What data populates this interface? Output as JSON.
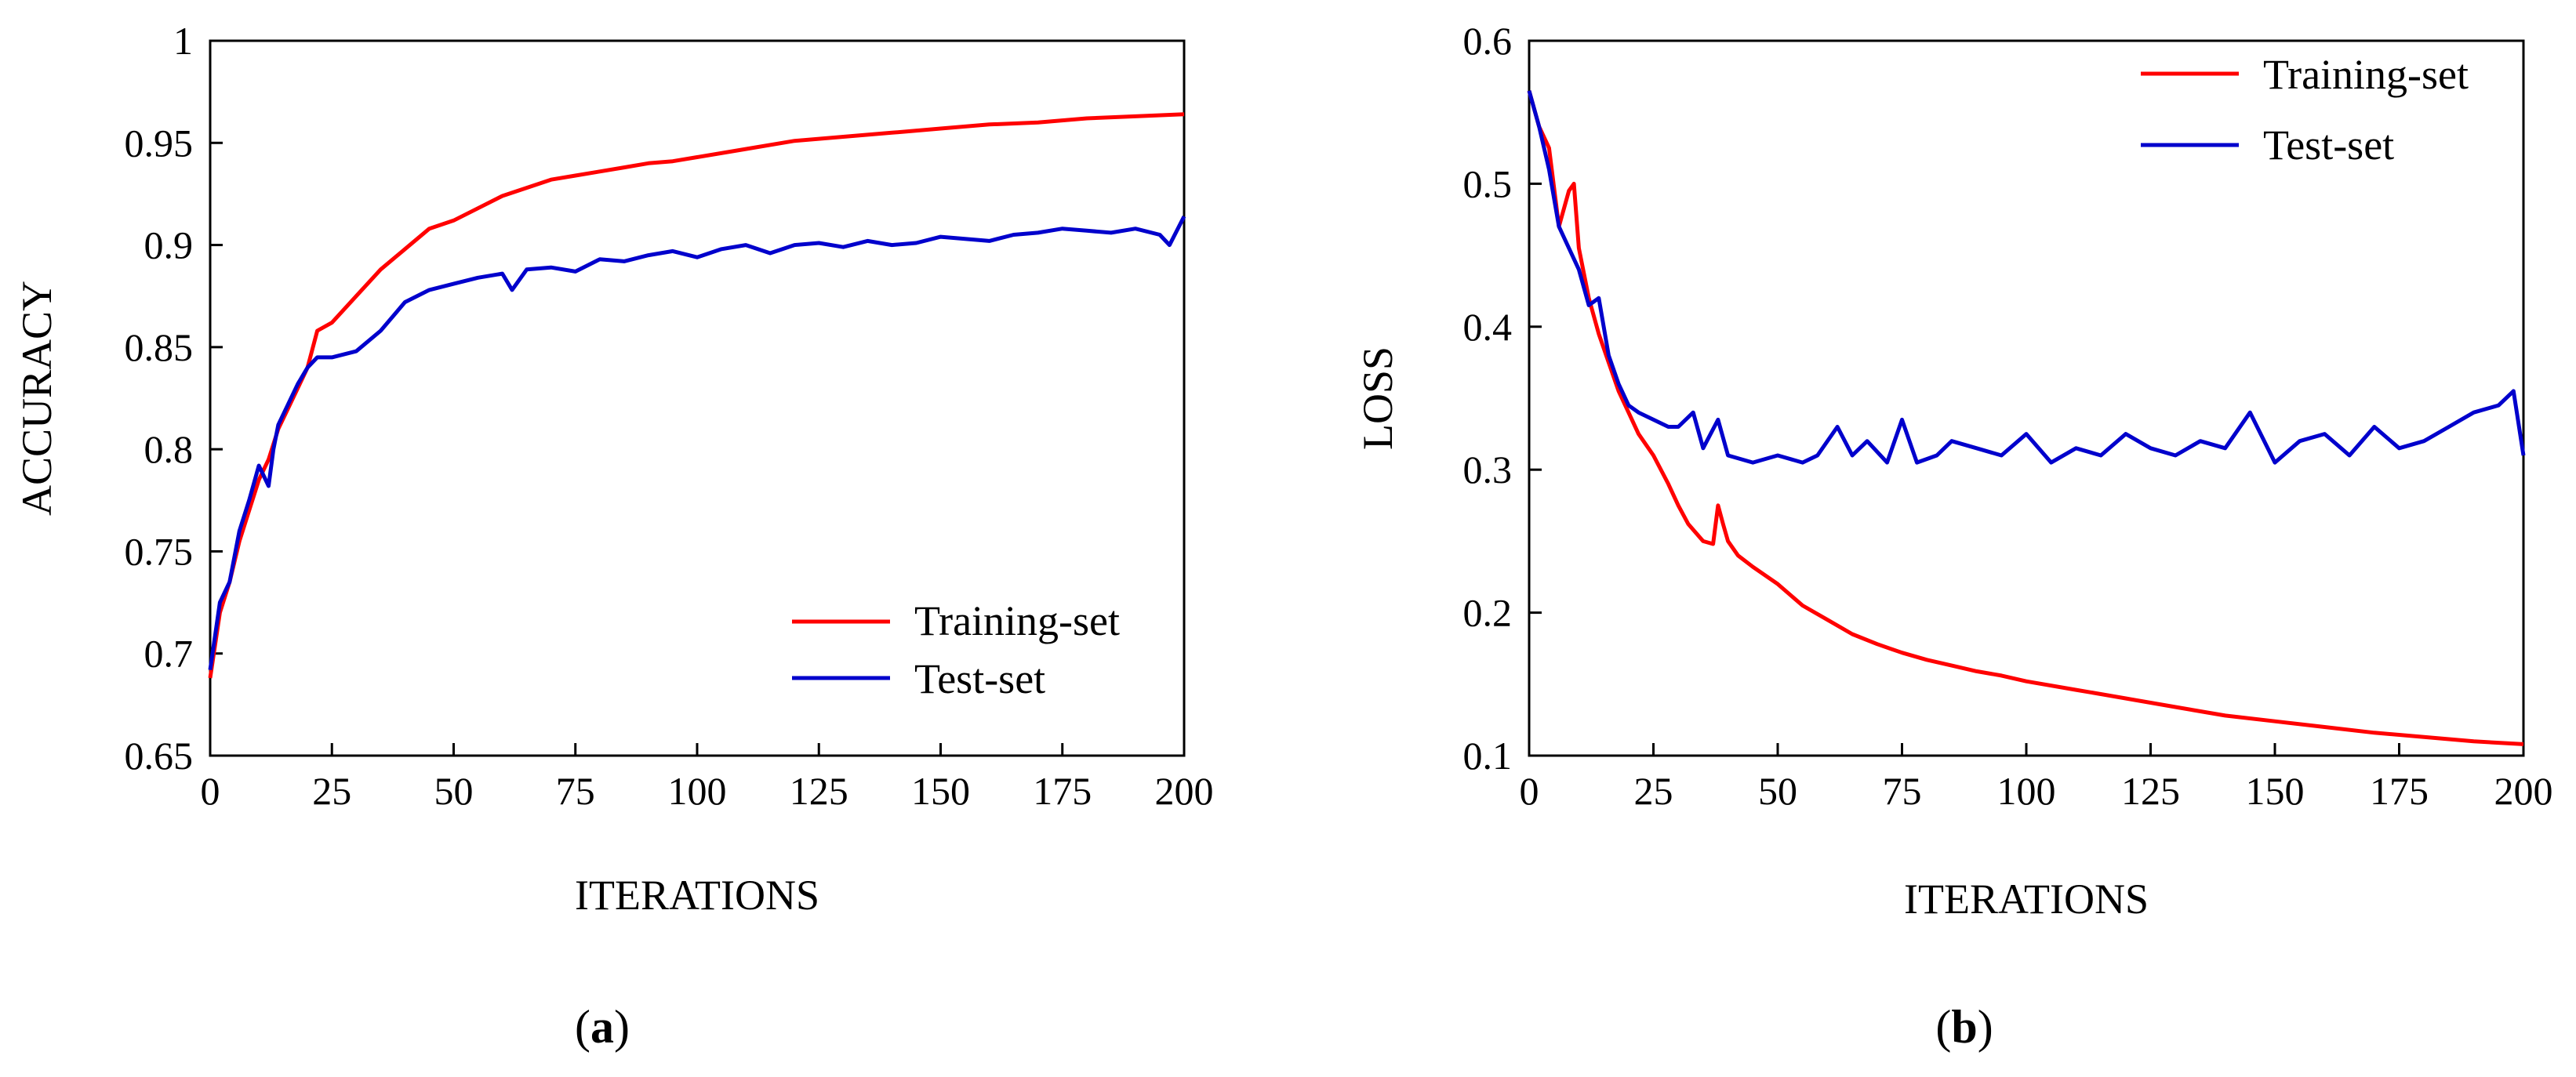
{
  "chart_data": [
    {
      "type": "line",
      "panel_label": "a",
      "title": "",
      "xlabel": "ITERATIONS",
      "ylabel": "ACCURACY",
      "xlim": [
        0,
        200
      ],
      "ylim": [
        0.65,
        1
      ],
      "xticks": [
        "0",
        "25",
        "50",
        "75",
        "100",
        "125",
        "150",
        "175",
        "200"
      ],
      "yticks": [
        "0.65",
        "0.7",
        "0.75",
        "0.8",
        "0.85",
        "0.9",
        "0.95",
        "1"
      ],
      "legend_position": "bottom-right",
      "series": [
        {
          "name": "Training-set",
          "color": "#ff0000",
          "x": [
            0,
            2,
            4,
            6,
            8,
            10,
            12,
            14,
            16,
            18,
            20,
            22,
            25,
            30,
            35,
            40,
            45,
            50,
            55,
            60,
            65,
            70,
            75,
            80,
            85,
            90,
            95,
            100,
            110,
            120,
            130,
            140,
            150,
            160,
            170,
            180,
            190,
            200
          ],
          "y": [
            0.688,
            0.72,
            0.735,
            0.755,
            0.77,
            0.785,
            0.795,
            0.81,
            0.82,
            0.83,
            0.84,
            0.858,
            0.862,
            0.875,
            0.888,
            0.898,
            0.908,
            0.912,
            0.918,
            0.924,
            0.928,
            0.932,
            0.934,
            0.936,
            0.938,
            0.94,
            0.941,
            0.943,
            0.947,
            0.951,
            0.953,
            0.955,
            0.957,
            0.959,
            0.96,
            0.962,
            0.963,
            0.964
          ]
        },
        {
          "name": "Test-set",
          "color": "#0000cc",
          "x": [
            0,
            2,
            4,
            6,
            8,
            10,
            12,
            13,
            14,
            16,
            18,
            20,
            22,
            25,
            30,
            35,
            40,
            45,
            50,
            55,
            60,
            62,
            65,
            70,
            75,
            80,
            85,
            90,
            95,
            100,
            105,
            110,
            115,
            120,
            125,
            130,
            135,
            140,
            145,
            150,
            155,
            160,
            165,
            170,
            175,
            180,
            185,
            190,
            195,
            197,
            200
          ],
          "y": [
            0.692,
            0.725,
            0.735,
            0.76,
            0.775,
            0.792,
            0.782,
            0.8,
            0.812,
            0.822,
            0.832,
            0.84,
            0.845,
            0.845,
            0.848,
            0.858,
            0.872,
            0.878,
            0.881,
            0.884,
            0.886,
            0.878,
            0.888,
            0.889,
            0.887,
            0.893,
            0.892,
            0.895,
            0.897,
            0.894,
            0.898,
            0.9,
            0.896,
            0.9,
            0.901,
            0.899,
            0.902,
            0.9,
            0.901,
            0.904,
            0.903,
            0.902,
            0.905,
            0.906,
            0.908,
            0.907,
            0.906,
            0.908,
            0.905,
            0.9,
            0.914
          ]
        }
      ]
    },
    {
      "type": "line",
      "panel_label": "b",
      "title": "",
      "xlabel": "ITERATIONS",
      "ylabel": "LOSS",
      "xlim": [
        0,
        200
      ],
      "ylim": [
        0.1,
        0.6
      ],
      "xticks": [
        "0",
        "25",
        "50",
        "75",
        "100",
        "125",
        "150",
        "175",
        "200"
      ],
      "yticks": [
        "0.1",
        "0.2",
        "0.3",
        "0.4",
        "0.5",
        "0.6"
      ],
      "legend_position": "top-right",
      "series": [
        {
          "name": "Training-set",
          "color": "#ff0000",
          "x": [
            0,
            2,
            4,
            6,
            8,
            9,
            10,
            12,
            14,
            16,
            18,
            20,
            22,
            25,
            28,
            30,
            32,
            35,
            37,
            38,
            39,
            40,
            42,
            45,
            50,
            55,
            60,
            65,
            70,
            75,
            80,
            85,
            90,
            95,
            100,
            110,
            120,
            130,
            140,
            150,
            160,
            170,
            180,
            190,
            200
          ],
          "y": [
            0.565,
            0.54,
            0.525,
            0.47,
            0.495,
            0.5,
            0.455,
            0.42,
            0.395,
            0.375,
            0.355,
            0.34,
            0.325,
            0.31,
            0.29,
            0.275,
            0.262,
            0.25,
            0.248,
            0.275,
            0.262,
            0.25,
            0.24,
            0.232,
            0.22,
            0.205,
            0.195,
            0.185,
            0.178,
            0.172,
            0.167,
            0.163,
            0.159,
            0.156,
            0.152,
            0.146,
            0.14,
            0.134,
            0.128,
            0.124,
            0.12,
            0.116,
            0.113,
            0.11,
            0.108
          ]
        },
        {
          "name": "Test-set",
          "color": "#0000cc",
          "x": [
            0,
            2,
            4,
            6,
            8,
            10,
            12,
            14,
            16,
            18,
            20,
            22,
            25,
            28,
            30,
            33,
            35,
            38,
            40,
            45,
            50,
            55,
            58,
            62,
            65,
            68,
            72,
            75,
            78,
            82,
            85,
            90,
            95,
            100,
            105,
            110,
            115,
            120,
            125,
            130,
            135,
            140,
            145,
            150,
            155,
            160,
            165,
            170,
            175,
            180,
            185,
            190,
            195,
            198,
            200
          ],
          "y": [
            0.565,
            0.54,
            0.51,
            0.47,
            0.455,
            0.44,
            0.415,
            0.42,
            0.38,
            0.36,
            0.345,
            0.34,
            0.335,
            0.33,
            0.33,
            0.34,
            0.315,
            0.335,
            0.31,
            0.305,
            0.31,
            0.305,
            0.31,
            0.33,
            0.31,
            0.32,
            0.305,
            0.335,
            0.305,
            0.31,
            0.32,
            0.315,
            0.31,
            0.325,
            0.305,
            0.315,
            0.31,
            0.325,
            0.315,
            0.31,
            0.32,
            0.315,
            0.34,
            0.305,
            0.32,
            0.325,
            0.31,
            0.33,
            0.315,
            0.32,
            0.33,
            0.34,
            0.345,
            0.355,
            0.31
          ]
        }
      ]
    }
  ]
}
